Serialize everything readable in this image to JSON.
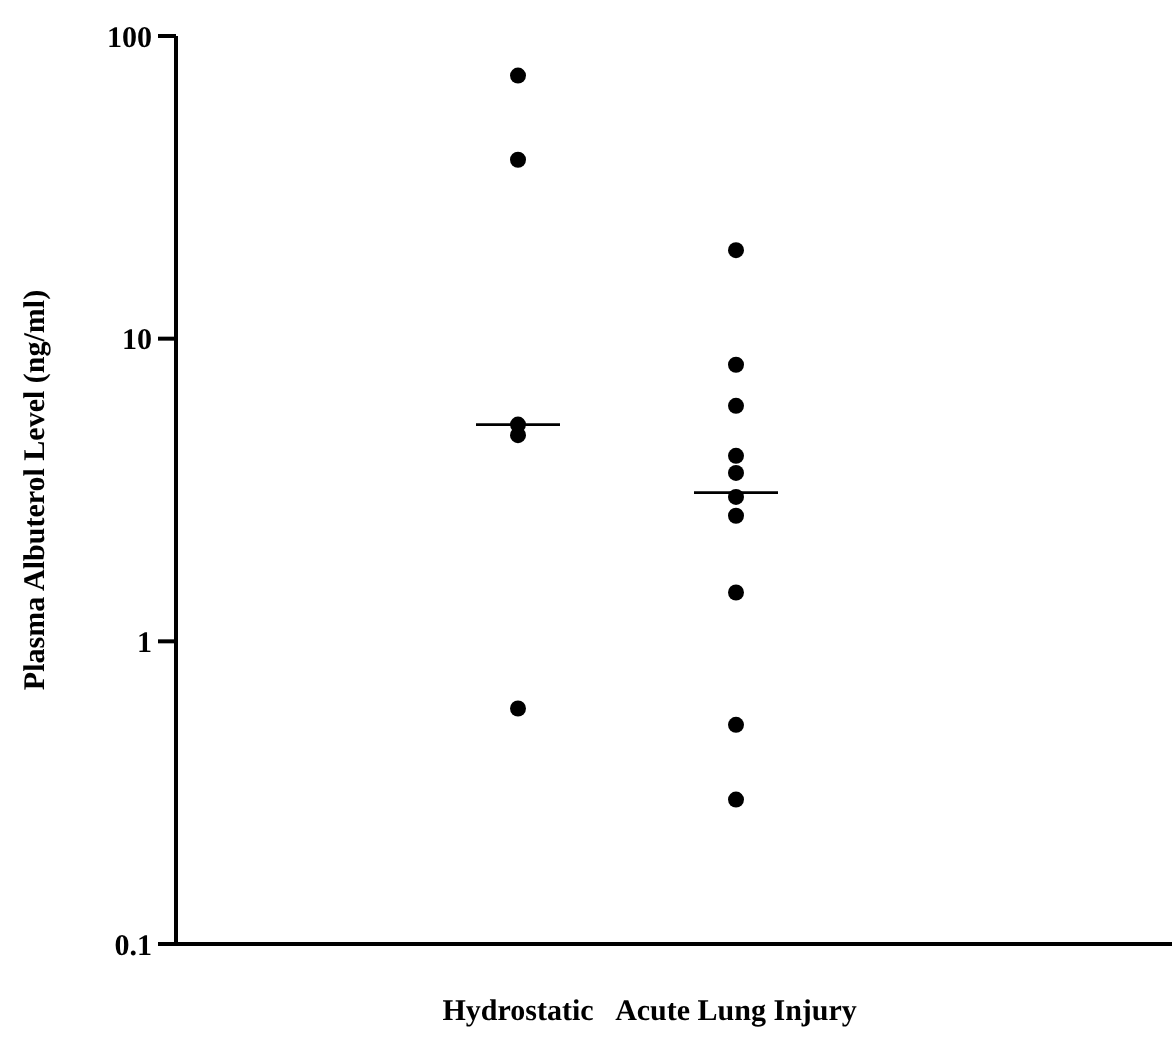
{
  "chart_data": {
    "type": "scatter",
    "ylabel": "Plasma Albuterol Level (ng/ml)",
    "categories": [
      "Hydrostatic",
      "Acute Lung Injury"
    ],
    "log": true,
    "ylim": [
      0.1,
      100
    ],
    "yticks": [
      0.1,
      1,
      10,
      100
    ],
    "grid": false,
    "series": [
      {
        "color": "#000000",
        "marker": "circle",
        "x": [
          "Hydrostatic",
          "Hydrostatic",
          "Hydrostatic",
          "Hydrostatic",
          "Hydrostatic"
        ],
        "values": [
          74,
          39,
          5.2,
          4.8,
          0.6
        ]
      },
      {
        "color": "#000000",
        "marker": "circle",
        "x": [
          "Acute Lung Injury",
          "Acute Lung Injury",
          "Acute Lung Injury",
          "Acute Lung Injury",
          "Acute Lung Injury",
          "Acute Lung Injury",
          "Acute Lung Injury",
          "Acute Lung Injury",
          "Acute Lung Injury",
          "Acute Lung Injury"
        ],
        "values": [
          19.6,
          8.2,
          6,
          4.1,
          3.6,
          3,
          2.6,
          1.45,
          0.53,
          0.3
        ]
      },
      {
        "type": "box",
        "color": "#000000",
        "boxes": [
          {
            "low": 5.2,
            "q1": 5.2,
            "median": 5.2,
            "q3": 5.2,
            "high": 5.2
          },
          {
            "low": 3.1,
            "q1": 3.1,
            "median": 3.1,
            "q3": 3.1,
            "high": 3.1
          }
        ]
      }
    ]
  }
}
